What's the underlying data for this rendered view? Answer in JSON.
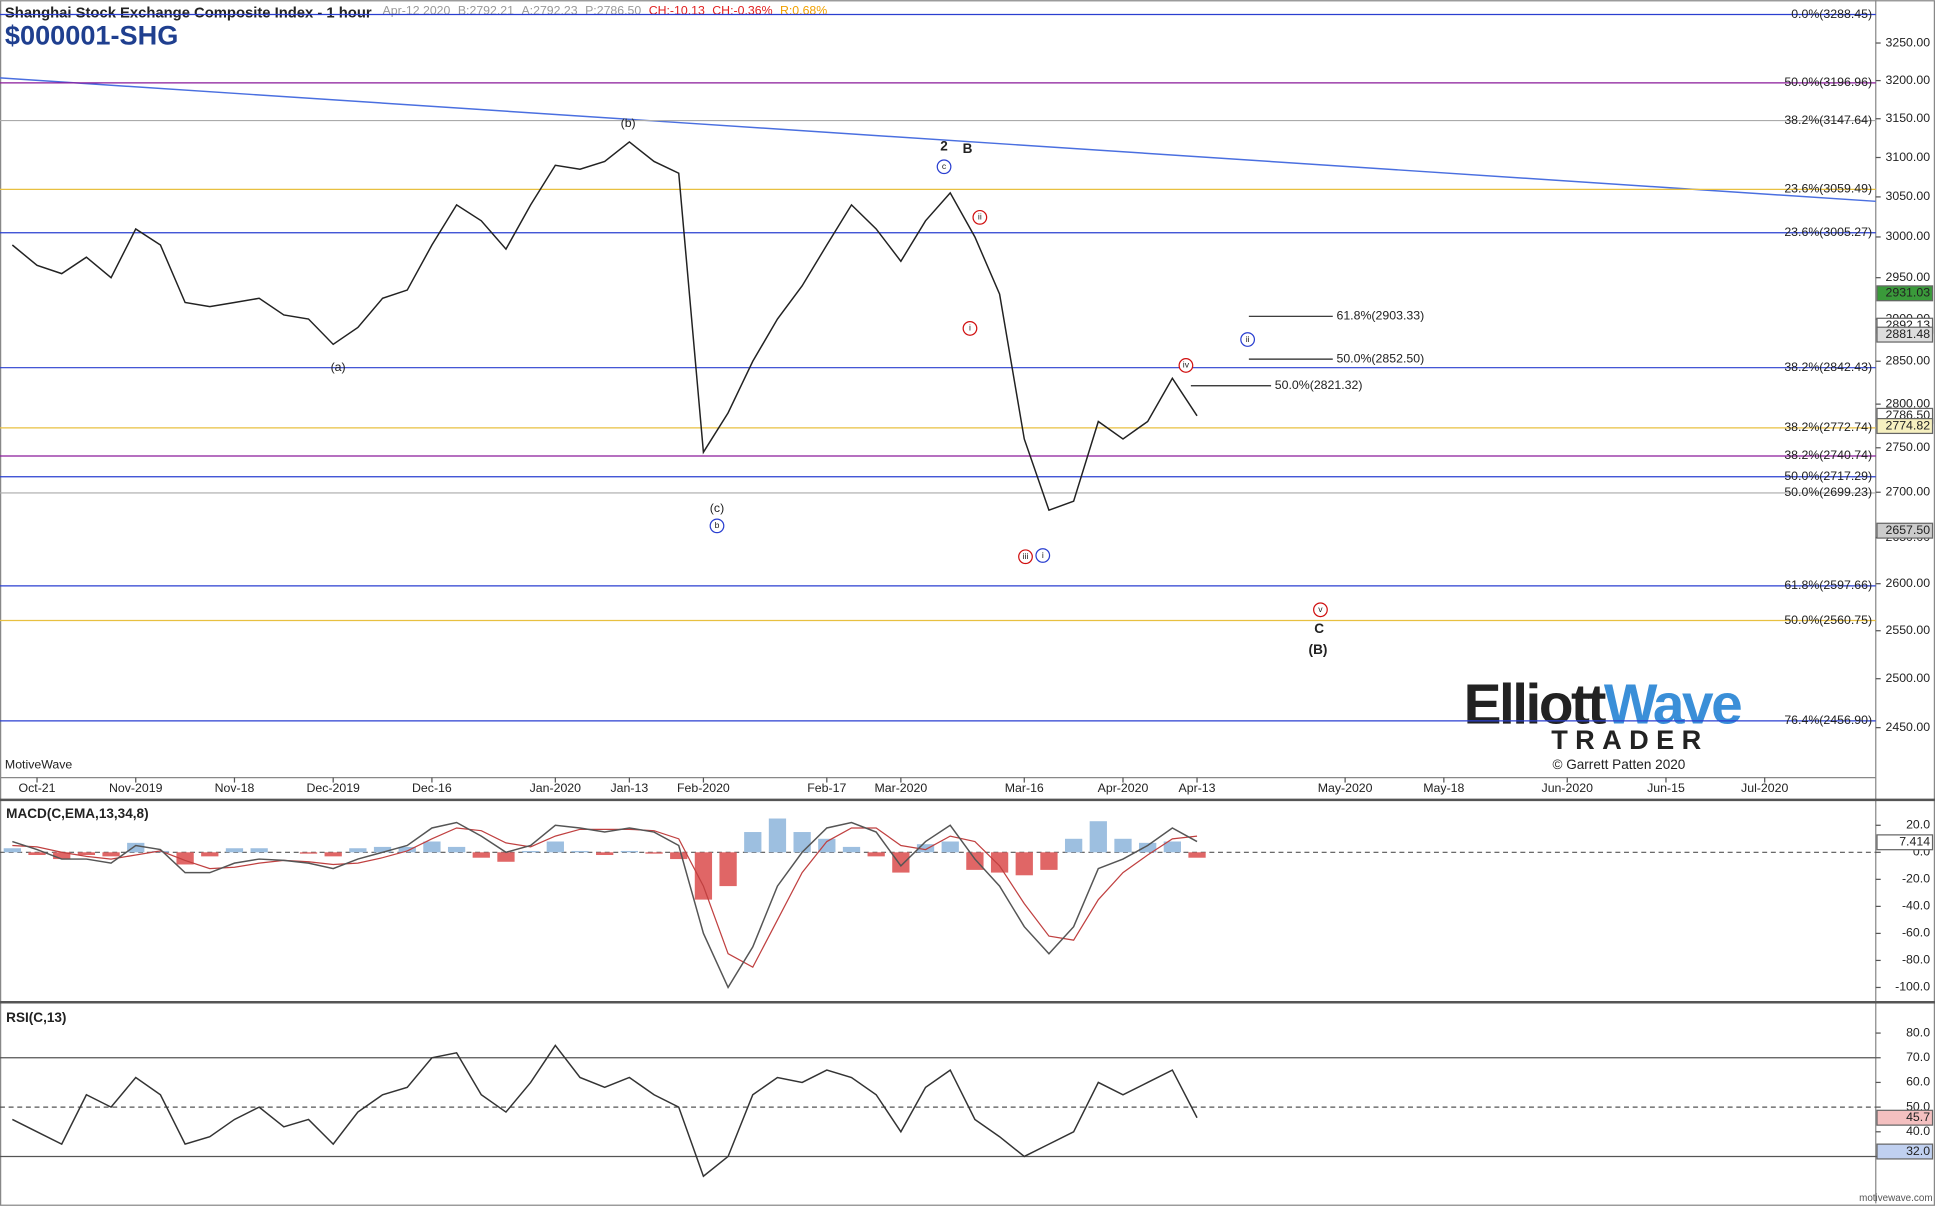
{
  "chart_data": [
    {
      "type": "line",
      "title": "Shanghai Stock Exchange Composite Index - 1 hour",
      "subtitle": "$000001-SHG",
      "quote": [
        "Apr-12 2020",
        "B:2792.21",
        "A:2792.23",
        "P:2786.50",
        "CH:-10.13",
        "CH:-0.36%",
        "R:0.68%"
      ],
      "quote_colors": [
        "#999",
        "#999",
        "#999",
        "#999",
        "#e02020",
        "#e02020",
        "#f0a000"
      ],
      "categories": [
        null,
        "Oct-21",
        null,
        null,
        null,
        "Nov-2019",
        null,
        null,
        null,
        "Nov-18",
        null,
        null,
        null,
        "Dec-2019",
        null,
        null,
        null,
        "Dec-16",
        null,
        null,
        null,
        null,
        "Jan-2020",
        null,
        null,
        "Jan-13",
        null,
        null,
        "Feb-2020",
        null,
        null,
        null,
        null,
        "Feb-17",
        null,
        null,
        "Mar-2020",
        null,
        null,
        null,
        null,
        "Mar-16",
        null,
        null,
        null,
        "Apr-2020",
        null,
        null,
        "Apr-13",
        null,
        null,
        null,
        null,
        null,
        "May-2020",
        null,
        null,
        null,
        "May-18",
        null,
        null,
        null,
        null,
        "Jun-2020",
        null,
        null,
        null,
        "Jun-15",
        null,
        null,
        null,
        "Jul-2020",
        null,
        null,
        null,
        null
      ],
      "values": [
        2990,
        2965,
        2955,
        2975,
        2950,
        3010,
        2990,
        2920,
        2915,
        2920,
        2925,
        2905,
        2900,
        2870,
        2890,
        2925,
        2935,
        2990,
        3040,
        3020,
        2985,
        3040,
        3090,
        3085,
        3095,
        3120,
        3095,
        3080,
        2745,
        2790,
        2850,
        2900,
        2940,
        2990,
        3040,
        3010,
        2970,
        3020,
        3055,
        3000,
        2930,
        2760,
        2680,
        2690,
        2780,
        2760,
        2780,
        2830,
        2786.5,
        null,
        null,
        null,
        null,
        null,
        null,
        null,
        null,
        null,
        null,
        null,
        null,
        null,
        null,
        null,
        null,
        null,
        null,
        null,
        null,
        null,
        null,
        null,
        null,
        null,
        null,
        null
      ],
      "color": "#222",
      "log": true,
      "ylim": [
        2400,
        3308
      ],
      "yticks": [
        {
          "value": 3250,
          "label": "3250.00"
        },
        {
          "value": 3200,
          "label": "3200.00"
        },
        {
          "value": 3150,
          "label": "3150.00"
        },
        {
          "value": 3100,
          "label": "3100.00"
        },
        {
          "value": 3050,
          "label": "3050.00"
        },
        {
          "value": 3000,
          "label": "3000.00"
        },
        {
          "value": 2950,
          "label": "2950.00"
        },
        {
          "value": 2900,
          "label": "2900.00"
        },
        {
          "value": 2850,
          "label": "2850.00"
        },
        {
          "value": 2800,
          "label": "2800.00"
        },
        {
          "value": 2750,
          "label": "2750.00"
        },
        {
          "value": 2700,
          "label": "2700.00"
        },
        {
          "value": 2650,
          "label": "2650.00"
        },
        {
          "value": 2600,
          "label": "2600.00"
        },
        {
          "value": 2550,
          "label": "2550.00"
        },
        {
          "value": 2500,
          "label": "2500.00"
        },
        {
          "value": 2450,
          "label": "2450.00"
        }
      ],
      "fib_levels": [
        {
          "value": 3288.45,
          "label": "0.0%(3288.45)"
        },
        {
          "value": 3196.96,
          "label": "50.0%(3196.96)"
        },
        {
          "value": 3147.64,
          "label": "38.2%(3147.64)"
        },
        {
          "value": 3059.49,
          "label": "23.6%(3059.49)"
        },
        {
          "value": 3005.27,
          "label": "23.6%(3005.27)"
        },
        {
          "value": 2842.43,
          "label": "38.2%(2842.43)"
        },
        {
          "value": 2772.74,
          "label": "38.2%(2772.74)"
        },
        {
          "value": 2740.74,
          "label": "38.2%(2740.74)"
        },
        {
          "value": 2717.29,
          "label": "50.0%(2717.29)"
        },
        {
          "value": 2699.23,
          "label": "50.0%(2699.23)"
        },
        {
          "value": 2597.66,
          "label": "61.8%(2597.66)"
        },
        {
          "value": 2560.75,
          "label": "50.0%(2560.75)"
        },
        {
          "value": 2456.9,
          "label": "76.4%(2456.90)"
        }
      ],
      "fib_colors": [
        "#2a3fd0",
        "#8a1a9a",
        "#aaaaaa",
        "#e8c040",
        "#2a3fd0",
        "#2a3fd0",
        "#e8c040",
        "#8a1a9a",
        "#2a3fd0",
        "#aaaaaa",
        "#2a3fd0",
        "#e8c040",
        "#2a3fd0"
      ],
      "projections": [
        {
          "value": 2903.33,
          "label": "61.8%(2903.33)"
        },
        {
          "value": 2852.5,
          "label": "50.0%(2852.50)"
        },
        {
          "value": 2821.32,
          "label": "50.0%(2821.32)"
        }
      ],
      "price_markers": [
        2931.03,
        2892.13,
        2881.48,
        {
          "value": 2786.5,
          "label": "2786.50"
        },
        2774.82,
        {
          "value": 2657.5,
          "label": "2657.50"
        }
      ],
      "marker_colors": [
        "#3a9a3a",
        "#ffffff",
        "#dddddd",
        "#ffffff",
        "#f6f0c0",
        "#cccccc"
      ],
      "wave_labels": [
        "(b)",
        "(a)",
        "(c)",
        "b",
        "c",
        "2",
        "B",
        "ii",
        "i",
        "iii",
        "i",
        "iv",
        "ii",
        "v",
        "C",
        "(B)"
      ],
      "watermark": "MotiveWave",
      "copyright": "© Garrett Patten 2020"
    },
    {
      "type": "line",
      "title": "MACD(C,EMA,13,34,8)",
      "values": [
        8,
        2,
        -5,
        -5,
        -8,
        5,
        2,
        -15,
        -15,
        -8,
        -5,
        -6,
        -8,
        -12,
        -5,
        0,
        5,
        18,
        22,
        12,
        0,
        5,
        20,
        18,
        15,
        18,
        15,
        5,
        -60,
        -100,
        -70,
        -25,
        0,
        18,
        22,
        15,
        -10,
        8,
        20,
        -5,
        -25,
        -55,
        -75,
        -55,
        -12,
        -5,
        5,
        18,
        8
      ],
      "color": "#555",
      "signal_values": [
        5,
        4,
        0,
        -3,
        -5,
        -2,
        1,
        -6,
        -12,
        -11,
        -8,
        -6,
        -7,
        -9,
        -8,
        -4,
        1,
        10,
        18,
        16,
        7,
        4,
        12,
        17,
        17,
        17,
        16,
        10,
        -25,
        -75,
        -85,
        -50,
        -15,
        8,
        18,
        18,
        5,
        2,
        12,
        8,
        -10,
        -38,
        -62,
        -65,
        -35,
        -15,
        -2,
        10,
        12
      ],
      "signal_color": "#c04040",
      "histogram": [
        3,
        -2,
        -5,
        -2,
        -3,
        7,
        1,
        -9,
        -3,
        3,
        3,
        0,
        -1,
        -3,
        3,
        4,
        4,
        8,
        4,
        -4,
        -7,
        1,
        8,
        1,
        -2,
        1,
        -1,
        -5,
        -35,
        -25,
        15,
        25,
        15,
        10,
        4,
        -3,
        -15,
        6,
        8,
        -13,
        -15,
        -17,
        -13,
        10,
        23,
        10,
        7,
        8,
        -4
      ],
      "histogram_colors": [
        "#9dbfe0",
        "#e06666"
      ],
      "ylim": [
        -110,
        37
      ],
      "yticks": [
        {
          "value": 20,
          "label": "20.0"
        },
        {
          "value": 0,
          "label": "0.0"
        },
        {
          "value": -20,
          "label": "-20.0"
        },
        {
          "value": -40,
          "label": "-40.0"
        },
        {
          "value": -60,
          "label": "-60.0"
        },
        {
          "value": -80,
          "label": "-80.0"
        },
        {
          "value": -100,
          "label": "-100.0"
        }
      ],
      "price_markers": [
        7.414
      ],
      "marker_colors": [
        "#ffffff"
      ]
    },
    {
      "type": "line",
      "title": "RSI(C,13)",
      "values": [
        45,
        40,
        35,
        55,
        50,
        62,
        55,
        35,
        38,
        45,
        50,
        42,
        45,
        35,
        48,
        55,
        58,
        70,
        72,
        55,
        48,
        60,
        75,
        62,
        58,
        62,
        55,
        50,
        22,
        30,
        55,
        62,
        60,
        65,
        62,
        55,
        40,
        58,
        65,
        45,
        38,
        30,
        35,
        40,
        60,
        55,
        60,
        65,
        45.7
      ],
      "color": "#333",
      "ylim": [
        11,
        91
      ],
      "yticks": [
        {
          "value": 80,
          "label": "80.0"
        },
        {
          "value": 70,
          "label": "70.0"
        },
        {
          "value": 60,
          "label": "60.0"
        },
        {
          "value": 50,
          "label": "50.0"
        },
        {
          "value": 40,
          "label": "40.0"
        },
        {
          "value": 30,
          "label": "30.0"
        }
      ],
      "levels": [
        70,
        50,
        30
      ],
      "price_markers": [
        45.7,
        {
          "value": 32,
          "label": "32.0"
        }
      ],
      "marker_colors": [
        "#f4c0c0",
        "#c0d0f0"
      ]
    }
  ],
  "logo": {
    "word1": "Elliott",
    "word2": "Wave",
    "word3": "TRADER"
  },
  "footer": "motivewave.com"
}
